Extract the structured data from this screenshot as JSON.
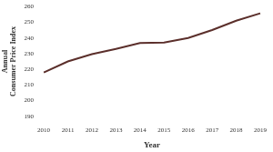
{
  "chart_data": {
    "type": "line",
    "x_label": "Year",
    "y_label": "Annual Consumer Price Index",
    "categories": [
      "2010",
      "2011",
      "2012",
      "2013",
      "2014",
      "2015",
      "2016",
      "2017",
      "2018",
      "2019"
    ],
    "values": [
      218,
      225,
      229.6,
      233,
      236.7,
      237,
      240,
      245,
      251,
      255.7
    ],
    "color": "#5b2f2b",
    "ylim": [
      190,
      260
    ],
    "yticks": [
      190,
      200,
      210,
      220,
      230,
      240,
      250,
      260
    ],
    "grid": false
  }
}
